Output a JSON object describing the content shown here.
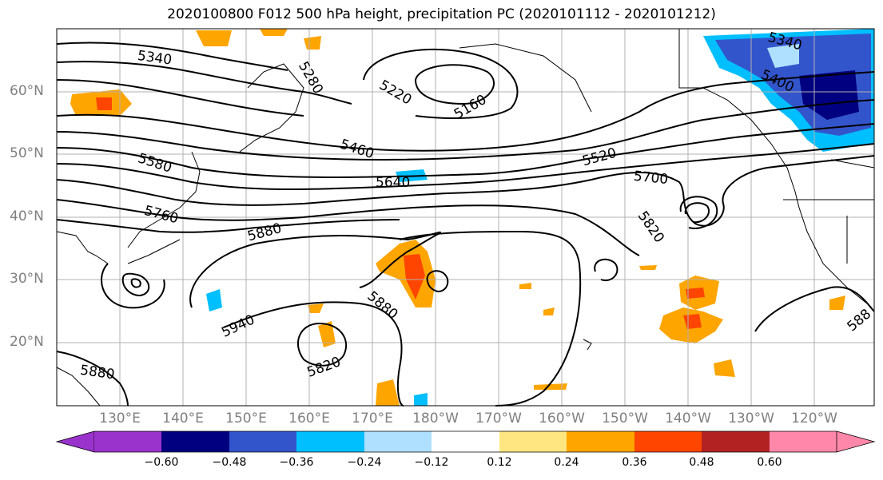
{
  "title": "2020100800 F012 500 hPa height, precipitation PC (2020101112 - 2020101212)",
  "map": {
    "region": "North Pacific",
    "lat_labels": [
      "60°N",
      "50°N",
      "40°N",
      "30°N",
      "20°N"
    ],
    "lon_labels": [
      "130°E",
      "140°E",
      "150°E",
      "160°E",
      "170°E",
      "180°W",
      "170°W",
      "160°W",
      "150°W",
      "140°W",
      "130°W",
      "120°W"
    ],
    "contour_labels": [
      "5340",
      "5280",
      "5220",
      "5160",
      "5460",
      "5580",
      "5640",
      "5520",
      "5700",
      "5760",
      "5880",
      "5820",
      "5940",
      "5880",
      "5820",
      "5880",
      "5400",
      "5340",
      "588"
    ],
    "contour_color": "#000000",
    "grid": true
  },
  "colorbar": {
    "ticks": [
      "−0.60",
      "−0.48",
      "−0.36",
      "−0.24",
      "−0.12",
      "0.12",
      "0.24",
      "0.36",
      "0.48",
      "0.60"
    ],
    "colors": [
      "#9933cc",
      "#000080",
      "#3355cc",
      "#00bfff",
      "#b0e0ff",
      "#ffffff",
      "#ffe680",
      "#ffa500",
      "#ff4500",
      "#b22222",
      "#ff88aa"
    ],
    "extend": "both"
  }
}
